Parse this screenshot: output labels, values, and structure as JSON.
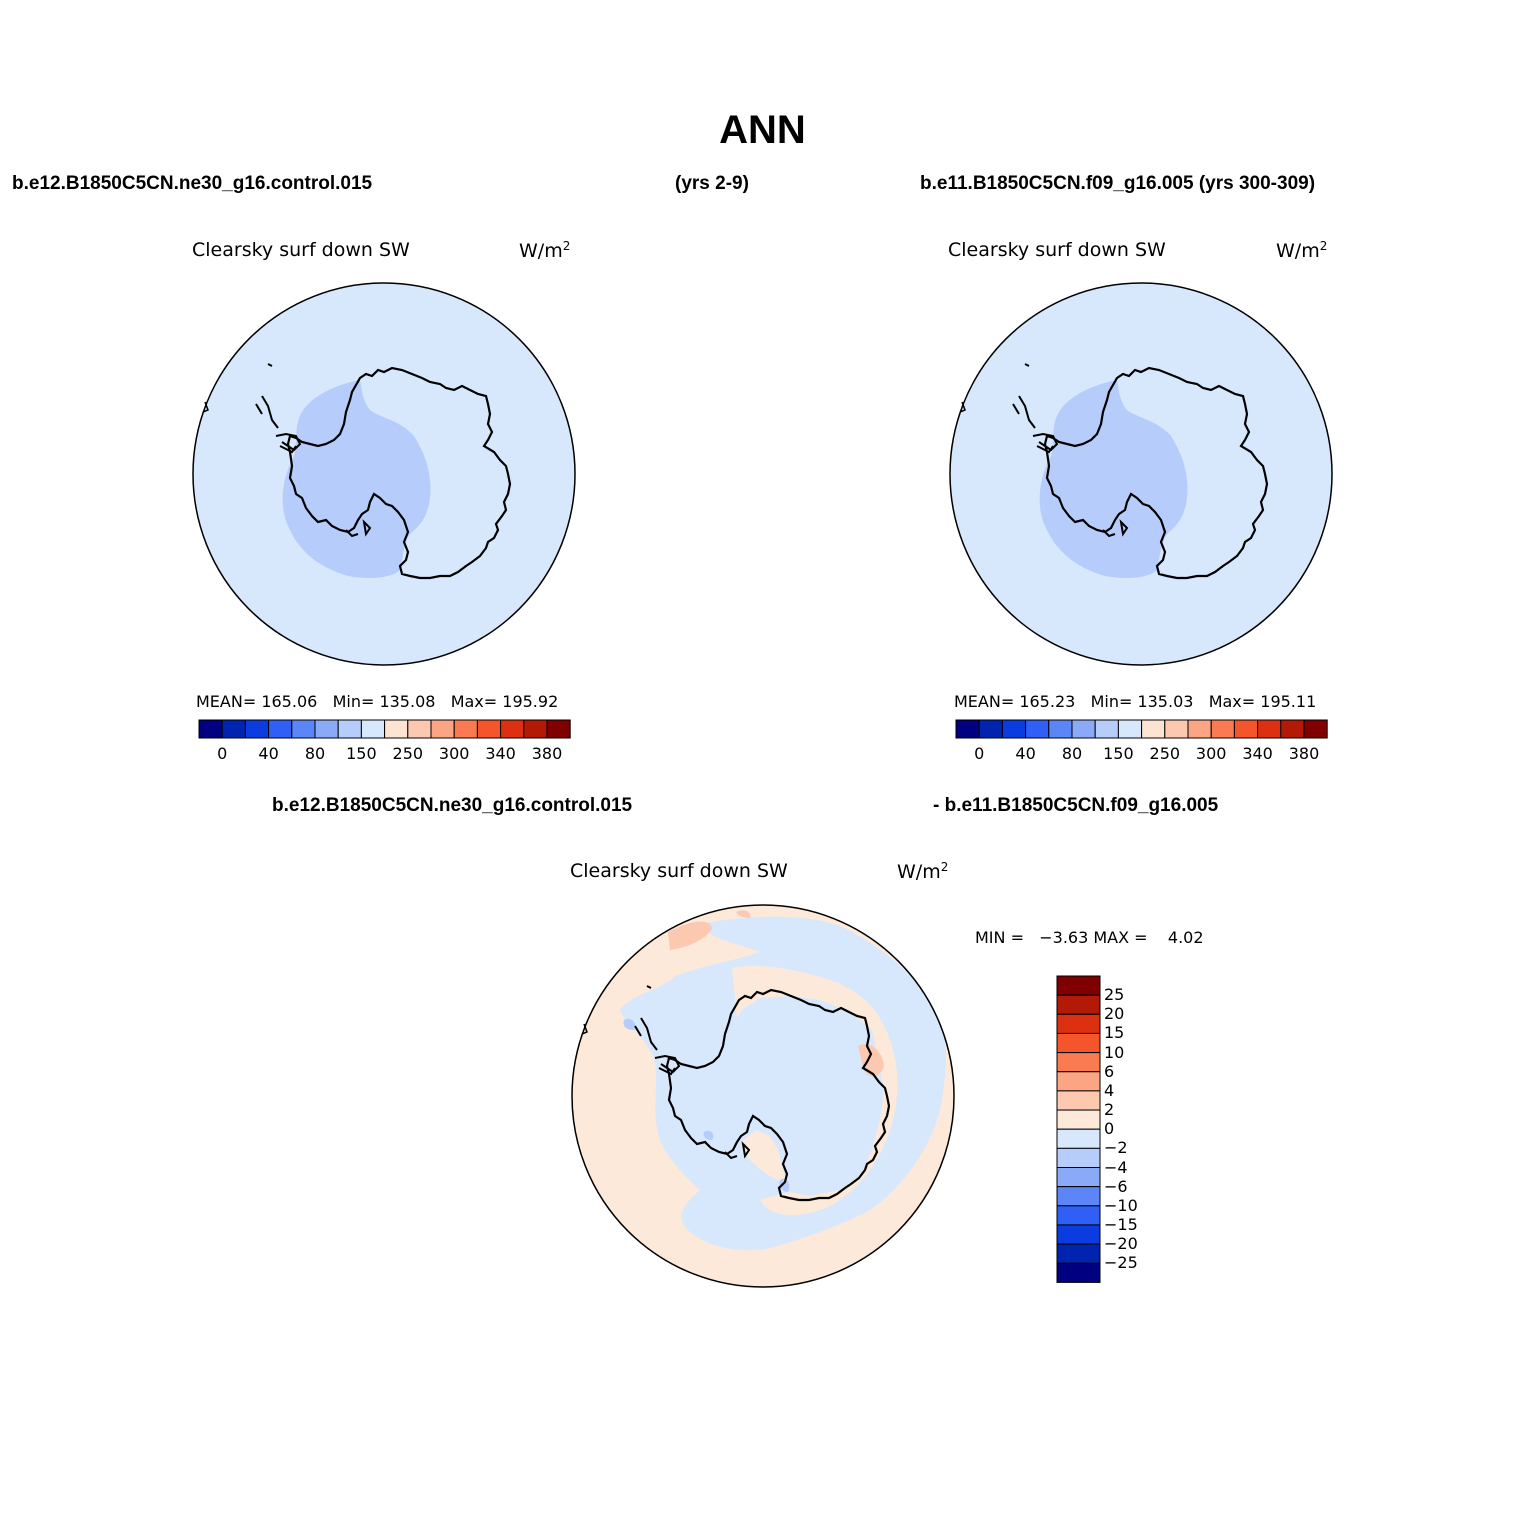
{
  "figure_title": "ANN",
  "left_header": "b.e12.B1850C5CN.ne30_g16.control.015",
  "center_header": "(yrs 2-9)",
  "right_header": "b.e11.B1850C5CN.f09_g16.005 (yrs 300-309)",
  "diff_header_left": "b.e12.B1850C5CN.ne30_g16.control.015",
  "diff_header_right": "- b.e11.B1850C5CN.f09_g16.005",
  "panels": [
    {
      "variable": "Clearsky surf down SW",
      "units_base": "W/m",
      "units_exp": "2",
      "stats": "MEAN= 165.06   Min= 135.08   Max= 195.92",
      "colorbar_ticks": [
        "0",
        "40",
        "80",
        "150",
        "250",
        "300",
        "340",
        "380"
      ]
    },
    {
      "variable": "Clearsky surf down SW",
      "units_base": "W/m",
      "units_exp": "2",
      "stats": "MEAN= 165.23   Min= 135.03   Max= 195.11",
      "colorbar_ticks": [
        "0",
        "40",
        "80",
        "150",
        "250",
        "300",
        "340",
        "380"
      ]
    }
  ],
  "diff_panel": {
    "variable": "Clearsky surf down SW",
    "units_base": "W/m",
    "units_exp": "2",
    "minmax": "MIN =   −3.63 MAX =    4.02",
    "colorbar_ticks": [
      "25",
      "20",
      "15",
      "10",
      "6",
      "4",
      "2",
      "0",
      "−2",
      "−4",
      "−6",
      "−10",
      "−15",
      "−20",
      "−25"
    ]
  },
  "colors": {
    "abs_scale": [
      "#000080",
      "#0024b0",
      "#0a3ce0",
      "#2f5ff5",
      "#5c86f7",
      "#8aaaf8",
      "#b6ccfb",
      "#d7e8fc",
      "#fde4d2",
      "#fcc8b0",
      "#fba584",
      "#fa7a52",
      "#f4552a",
      "#dc3010",
      "#b21a05",
      "#800000"
    ],
    "diff_scale_top_to_bottom": [
      "#800000",
      "#b21a05",
      "#dc3010",
      "#f4552a",
      "#fa7a52",
      "#fba584",
      "#fcc8b0",
      "#fde9d9",
      "#d7e8fc",
      "#b6ccfb",
      "#8aaaf8",
      "#5c86f7",
      "#2f5ff5",
      "#0a3ce0",
      "#0024b0",
      "#000080"
    ],
    "ocean_fill": "#d7e8fc",
    "west_antarctica_fill": "#b6ccfb",
    "diff_positive_fill": "#fde9d9",
    "diff_stronger_positive": "#fcc8b0"
  }
}
